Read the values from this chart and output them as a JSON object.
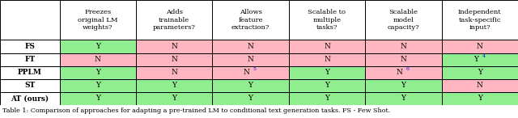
{
  "col_headers": [
    "Freezes\noriginal LM\nweights?",
    "Adds\ntrainable\nparameters?",
    "Allows\nfeature\nextraction?",
    "Scalable to\nmultiple\ntasks?",
    "Scalable\nmodel\ncapacity?",
    "Independent\ntask-specific\ninput?"
  ],
  "row_headers": [
    "FS",
    "FT",
    "PPLM",
    "ST",
    "AT (ours)"
  ],
  "cells": [
    [
      "Y",
      "N",
      "N",
      "N",
      "N",
      "N"
    ],
    [
      "N",
      "N",
      "N",
      "N",
      "N",
      "Y4"
    ],
    [
      "Y",
      "N",
      "N5",
      "Y",
      "N6",
      "Y"
    ],
    [
      "Y",
      "Y",
      "Y",
      "Y",
      "Y",
      "N"
    ],
    [
      "Y",
      "Y",
      "Y",
      "Y",
      "Y",
      "Y"
    ]
  ],
  "cell_colors": [
    [
      "#90EE90",
      "#FFB6C1",
      "#FFB6C1",
      "#FFB6C1",
      "#FFB6C1",
      "#FFB6C1"
    ],
    [
      "#FFB6C1",
      "#FFB6C1",
      "#FFB6C1",
      "#FFB6C1",
      "#FFB6C1",
      "#90EE90"
    ],
    [
      "#90EE90",
      "#FFB6C1",
      "#FFB6C1",
      "#90EE90",
      "#FFB6C1",
      "#90EE90"
    ],
    [
      "#90EE90",
      "#90EE90",
      "#90EE90",
      "#90EE90",
      "#90EE90",
      "#FFB6C1"
    ],
    [
      "#90EE90",
      "#90EE90",
      "#90EE90",
      "#90EE90",
      "#90EE90",
      "#90EE90"
    ]
  ],
  "superscript_color": "#0000FF",
  "caption": "Table 1: Comparison of approaches for adapting a pre-trained LM to conditional text generation tasks. FS - Few Shot.",
  "fig_width": 6.4,
  "fig_height": 1.46,
  "header_fontsize": 6.0,
  "cell_fontsize": 6.5,
  "row_header_fontsize": 6.5,
  "caption_fontsize": 5.8
}
